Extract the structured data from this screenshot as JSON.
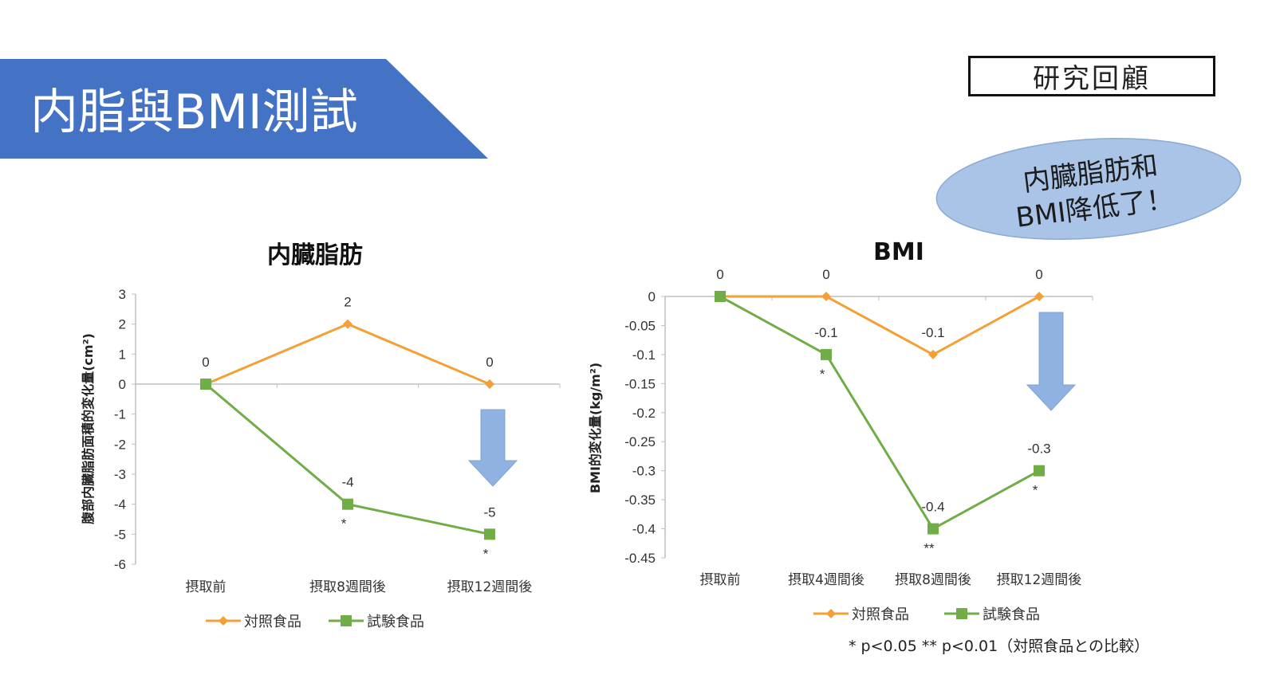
{
  "header": {
    "title": "内脂與BMI測試",
    "badge": "研究回顧"
  },
  "callout": {
    "line1": "内臓脂肪和",
    "line2": "BMI降低了！"
  },
  "colors": {
    "banner": "#4472c4",
    "control": "#f4a034",
    "test": "#70ad47",
    "arrow": "#8fb2e0",
    "callout": "#a9c4e6"
  },
  "footnote": "* p<0.05 ** p<0.01（対照食品との比較）",
  "chart_data": [
    {
      "type": "line",
      "title": "内臓脂肪",
      "ylabel": "腹部内臓脂肪面積的変化量(cm²)",
      "categories": [
        "摂取前",
        "摂取8週間後",
        "摂取12週間後"
      ],
      "ylim": [
        -6,
        3
      ],
      "yticks": [
        "3",
        "2",
        "1",
        "0",
        "-1",
        "-2",
        "-3",
        "-4",
        "-5",
        "-6"
      ],
      "series": [
        {
          "name": "対照食品",
          "values": [
            0,
            2,
            0
          ],
          "labels": [
            "0",
            "2",
            "0"
          ],
          "color": "#f4a034",
          "marker": "diamond",
          "stars": [
            "",
            "",
            ""
          ]
        },
        {
          "name": "試験食品",
          "values": [
            0,
            -4,
            -5
          ],
          "labels": [
            "",
            "-4",
            "-5"
          ],
          "color": "#70ad47",
          "marker": "square",
          "stars": [
            "",
            "*",
            "*"
          ]
        }
      ],
      "legend_position": "bottom"
    },
    {
      "type": "line",
      "title": "BMI",
      "ylabel": "BMI的変化量(kg/m²)",
      "categories": [
        "摂取前",
        "摂取4週間後",
        "摂取8週間後",
        "摂取12週間後"
      ],
      "ylim": [
        -0.45,
        0
      ],
      "yticks": [
        "0",
        "-0.05",
        "-0.1",
        "-0.15",
        "-0.2",
        "-0.25",
        "-0.3",
        "-0.35",
        "-0.4",
        "-0.45"
      ],
      "series": [
        {
          "name": "対照食品",
          "values": [
            0,
            0,
            -0.1,
            0
          ],
          "labels": [
            "0",
            "0",
            "-0.1",
            "0"
          ],
          "color": "#f4a034",
          "marker": "diamond",
          "stars": [
            "",
            "",
            "",
            ""
          ]
        },
        {
          "name": "試験食品",
          "values": [
            0,
            -0.1,
            -0.4,
            -0.3
          ],
          "labels": [
            "",
            "-0.1",
            "-0.4",
            "-0.3"
          ],
          "color": "#70ad47",
          "marker": "square",
          "stars": [
            "",
            "*",
            "**",
            "*"
          ]
        }
      ],
      "legend_position": "bottom"
    }
  ]
}
